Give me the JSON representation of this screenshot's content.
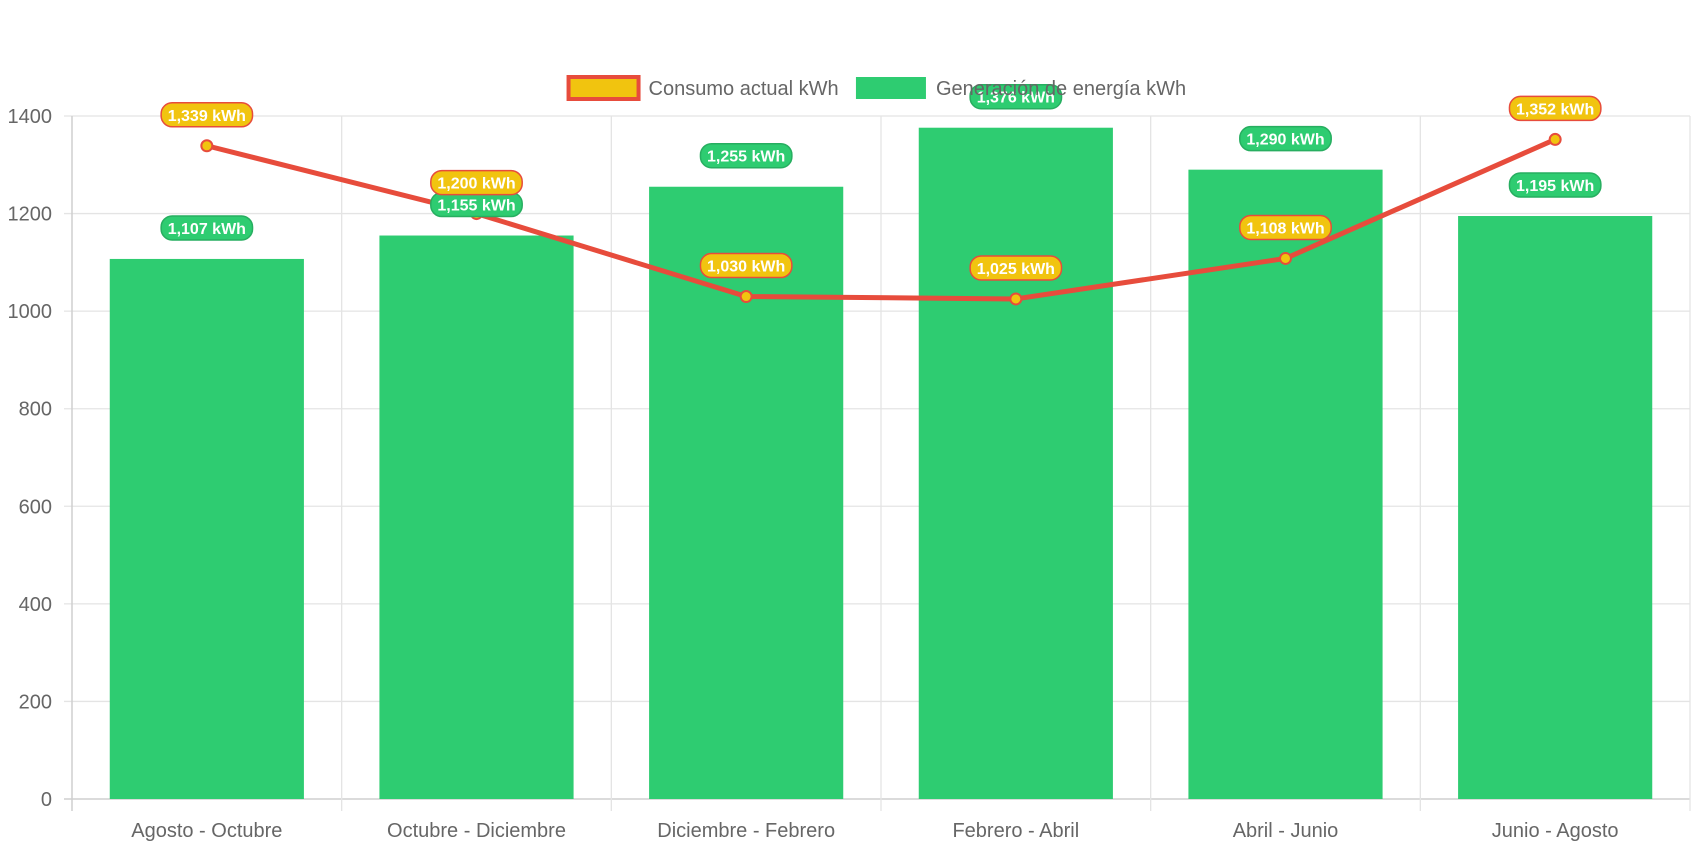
{
  "chart_data": {
    "type": "bar",
    "categories": [
      "Agosto - Octubre",
      "Octubre - Diciembre",
      "Diciembre - Febrero",
      "Febrero - Abril",
      "Abril - Junio",
      "Junio - Agosto"
    ],
    "series": [
      {
        "name": "Generación de energía kWh",
        "type": "bar",
        "values": [
          1107,
          1155,
          1255,
          1376,
          1290,
          1195
        ],
        "labels": [
          "1,107 kWh",
          "1,155 kWh",
          "1,255 kWh",
          "1,376 kWh",
          "1,290 kWh",
          "1,195 kWh"
        ],
        "color": "#2ecc71"
      },
      {
        "name": "Consumo actual kWh",
        "type": "line",
        "values": [
          1339,
          1200,
          1030,
          1025,
          1108,
          1352
        ],
        "labels": [
          "1,339 kWh",
          "1,200 kWh",
          "1,030 kWh",
          "1,025 kWh",
          "1,108 kWh",
          "1,352 kWh"
        ],
        "color": "#e74c3c",
        "fill_color": "#f1c40f"
      }
    ],
    "ylim": [
      0,
      1400
    ],
    "yticks": [
      "0",
      "200",
      "400",
      "600",
      "800",
      "1000",
      "1200",
      "1400"
    ],
    "grid": true,
    "legend_position": "top",
    "title": "",
    "xlabel": "",
    "ylabel": ""
  }
}
